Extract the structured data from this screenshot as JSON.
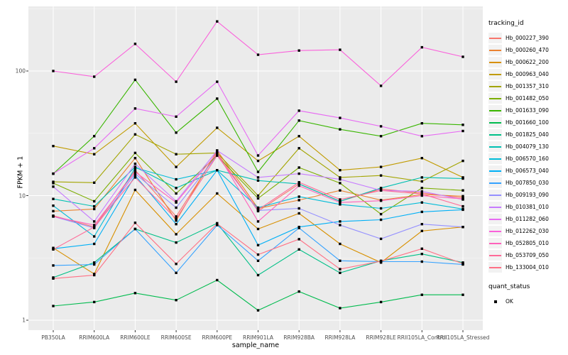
{
  "figure": {
    "x_axis_title": "sample_name",
    "y_axis_title": "FPKM + 1",
    "legend": {
      "tracking_title": "tracking_id",
      "quant_title": "quant_status",
      "quant_items": [
        {
          "label": "OK",
          "marker": "black-square"
        }
      ]
    },
    "colors": {
      "panel_bg": "#EBEBEB",
      "grid_major": "#FFFFFF",
      "grid_minor": "#F7F7F7",
      "axis_text": "#4D4D4D",
      "marker": "#000000",
      "legend_key_bg": "#F2F2F2"
    }
  },
  "chart_data": {
    "type": "line",
    "title": "",
    "xlabel": "sample_name",
    "ylabel": "FPKM + 1",
    "y_scale": "log10",
    "ylim": [
      0.85,
      330
    ],
    "y_ticks": [
      1,
      10,
      100
    ],
    "grid": true,
    "legend_position": "right",
    "marker": "black-square",
    "quant_status": "OK",
    "categories": [
      "PB350LA",
      "RRIM600LA",
      "RRIM600LE",
      "RRIM600SE",
      "RRIM600PE",
      "RRIM901LA",
      "RRIM928BA",
      "RRIM928LA",
      "RRIM928LE",
      "RRII105LA_Control",
      "RRII105LA_Stressed"
    ],
    "series": [
      {
        "name": "Hb_000227_390",
        "color": "#F8766D",
        "values": [
          6.9,
          5.6,
          16,
          6.8,
          22,
          7.5,
          12.4,
          9.0,
          11.3,
          10.5,
          9.6
        ]
      },
      {
        "name": "Hb_000260_470",
        "color": "#EA8331",
        "values": [
          7.5,
          7.8,
          20,
          6.3,
          23,
          7.9,
          9.2,
          11.0,
          9.2,
          10.2,
          9.9
        ]
      },
      {
        "name": "Hb_000622_200",
        "color": "#D89000",
        "values": [
          3.8,
          2.35,
          11.1,
          4.9,
          10.4,
          5.4,
          7.2,
          4.1,
          2.9,
          5.2,
          5.6
        ]
      },
      {
        "name": "Hb_000963_040",
        "color": "#C09B00",
        "values": [
          25,
          21.5,
          38,
          17,
          35,
          19,
          30,
          16,
          17,
          20,
          14
        ]
      },
      {
        "name": "Hb_001357_310",
        "color": "#A3A500",
        "values": [
          12.9,
          12.7,
          31,
          21.5,
          22,
          10,
          24,
          14,
          14.5,
          13,
          19
        ]
      },
      {
        "name": "Hb_001482_050",
        "color": "#7CAE00",
        "values": [
          12.6,
          9.0,
          22,
          10.4,
          21,
          9.5,
          16.8,
          12.6,
          7.1,
          11.5,
          11.0
        ]
      },
      {
        "name": "Hb_001633_090",
        "color": "#39B600",
        "values": [
          15,
          30,
          85,
          32,
          60,
          15.5,
          40,
          34,
          30,
          38,
          37
        ]
      },
      {
        "name": "Hb_001660_100",
        "color": "#00BB4E",
        "values": [
          1.3,
          1.4,
          1.65,
          1.45,
          2.1,
          1.2,
          1.7,
          1.25,
          1.4,
          1.6,
          1.6
        ]
      },
      {
        "name": "Hb_001825_040",
        "color": "#00C087",
        "values": [
          2.2,
          2.9,
          5.4,
          4.2,
          6.0,
          2.3,
          3.7,
          2.4,
          3.0,
          3.4,
          2.9
        ]
      },
      {
        "name": "Hb_004079_130",
        "color": "#00C0B2",
        "values": [
          9.4,
          8.2,
          17,
          11.5,
          16,
          13.2,
          12.4,
          9.0,
          11.5,
          14,
          13.7
        ]
      },
      {
        "name": "Hb_006570_160",
        "color": "#00BCD8",
        "values": [
          8.3,
          4.7,
          16.7,
          13.5,
          16,
          8.0,
          9.8,
          8.5,
          7.9,
          8.8,
          7.8
        ]
      },
      {
        "name": "Hb_006573_040",
        "color": "#00B0F6",
        "values": [
          3.75,
          4.1,
          14.5,
          5.9,
          16,
          4.0,
          5.6,
          6.2,
          6.4,
          7.4,
          7.7
        ]
      },
      {
        "name": "Hb_007850_030",
        "color": "#35A2FF",
        "values": [
          2.75,
          2.8,
          5.4,
          2.4,
          5.8,
          3.0,
          5.5,
          3.0,
          2.95,
          2.95,
          2.8
        ]
      },
      {
        "name": "Hb_009193_090",
        "color": "#9590FF",
        "values": [
          6.8,
          5.5,
          15,
          8.0,
          21,
          7.6,
          7.9,
          5.8,
          4.5,
          5.9,
          5.6
        ]
      },
      {
        "name": "Hb_010381_010",
        "color": "#C77CFF",
        "values": [
          11.8,
          6.2,
          18,
          9.0,
          23,
          14.0,
          15.0,
          13.5,
          11.0,
          10.8,
          9.3
        ]
      },
      {
        "name": "Hb_011282_060",
        "color": "#E76BF3",
        "values": [
          15,
          24,
          50,
          43,
          82,
          21,
          48,
          42,
          36,
          30,
          33
        ]
      },
      {
        "name": "Hb_012262_030",
        "color": "#FA62DB",
        "values": [
          100,
          90,
          165,
          82,
          250,
          135,
          146,
          148,
          76,
          155,
          130
        ]
      },
      {
        "name": "Hb_052805_010",
        "color": "#FF62BC",
        "values": [
          6.8,
          5.8,
          15.5,
          8.8,
          22,
          6.2,
          12.0,
          8.8,
          9.1,
          10.0,
          9.4
        ]
      },
      {
        "name": "Hb_053709_050",
        "color": "#FF6A98",
        "values": [
          3.7,
          5.6,
          14.0,
          6.5,
          21.0,
          7.7,
          12.8,
          9.3,
          11.0,
          10.3,
          8.2
        ]
      },
      {
        "name": "Hb_133004_010",
        "color": "#FF7085",
        "values": [
          2.16,
          2.3,
          6.05,
          2.83,
          5.95,
          3.36,
          4.47,
          2.57,
          2.98,
          3.75,
          2.84
        ]
      }
    ]
  }
}
